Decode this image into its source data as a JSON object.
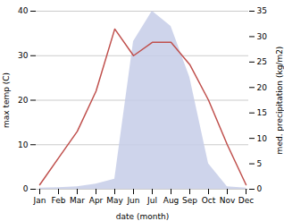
{
  "chart_data": {
    "type": "line",
    "categories": [
      "Jan",
      "Feb",
      "Mar",
      "Apr",
      "May",
      "Jun",
      "Jul",
      "Aug",
      "Sep",
      "Oct",
      "Nov",
      "Dec"
    ],
    "xlabel": "date (month)",
    "ylabel": "max temp (C)",
    "y2label": "med. precipitation (kg/m2)",
    "ylim": [
      0,
      40
    ],
    "yticks": [
      0,
      10,
      20,
      30,
      40
    ],
    "y2lim": [
      0,
      35
    ],
    "y2ticks": [
      0,
      5,
      10,
      15,
      20,
      25,
      30,
      35
    ],
    "grid": true,
    "series": [
      {
        "type": "area",
        "axis": "y2",
        "color": "#c5cce8",
        "values": [
          0.2,
          0.3,
          0.5,
          1.0,
          2.0,
          29,
          35,
          32,
          22,
          5,
          0.5,
          0.2
        ]
      },
      {
        "type": "line",
        "color": "#c0504d",
        "values": [
          1,
          7,
          13,
          22,
          36,
          30,
          33,
          33,
          28,
          20,
          10,
          1
        ]
      }
    ]
  }
}
